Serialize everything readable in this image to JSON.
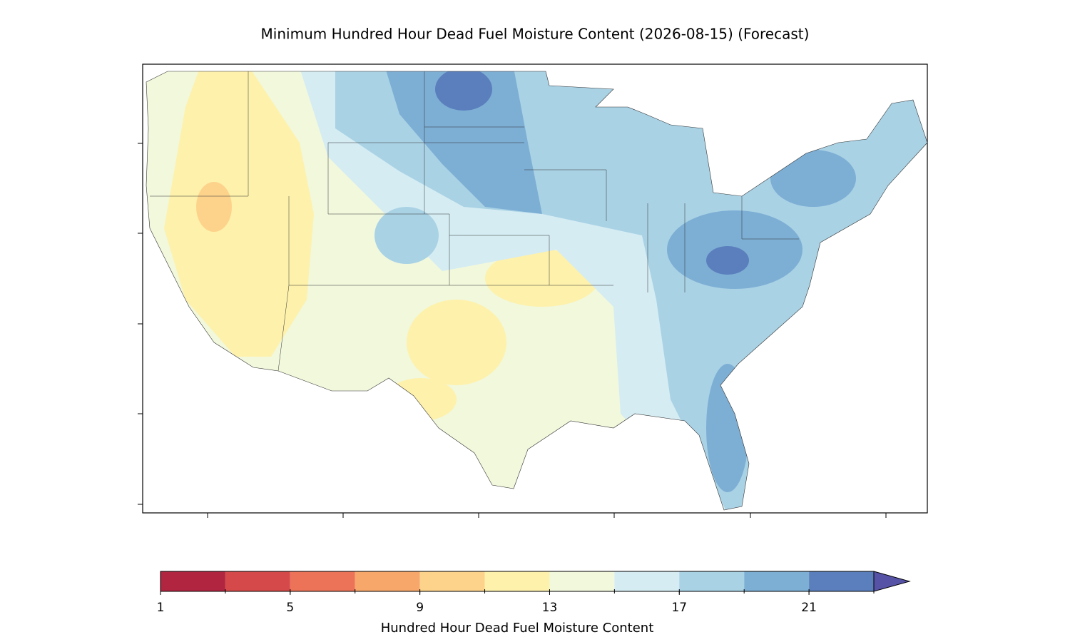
{
  "title": "Minimum Hundred Hour Dead Fuel Moisture Content (2026-08-15) (Forecast)",
  "colorbar": {
    "levels": [
      1,
      3,
      5,
      7,
      9,
      11,
      13,
      15,
      17,
      19,
      21,
      23
    ],
    "colors": [
      "#b22541",
      "#d6494a",
      "#ec7358",
      "#f8a76a",
      "#fdd38c",
      "#fef1ab",
      "#f1f8dc",
      "#d5ecf3",
      "#a9d2e5",
      "#7daed4",
      "#5b7fbd"
    ],
    "extend_color": "#5652a5",
    "ticks": [
      1,
      5,
      9,
      13,
      17,
      21
    ],
    "label": "Hundred Hour Dead Fuel Moisture Content"
  }
}
